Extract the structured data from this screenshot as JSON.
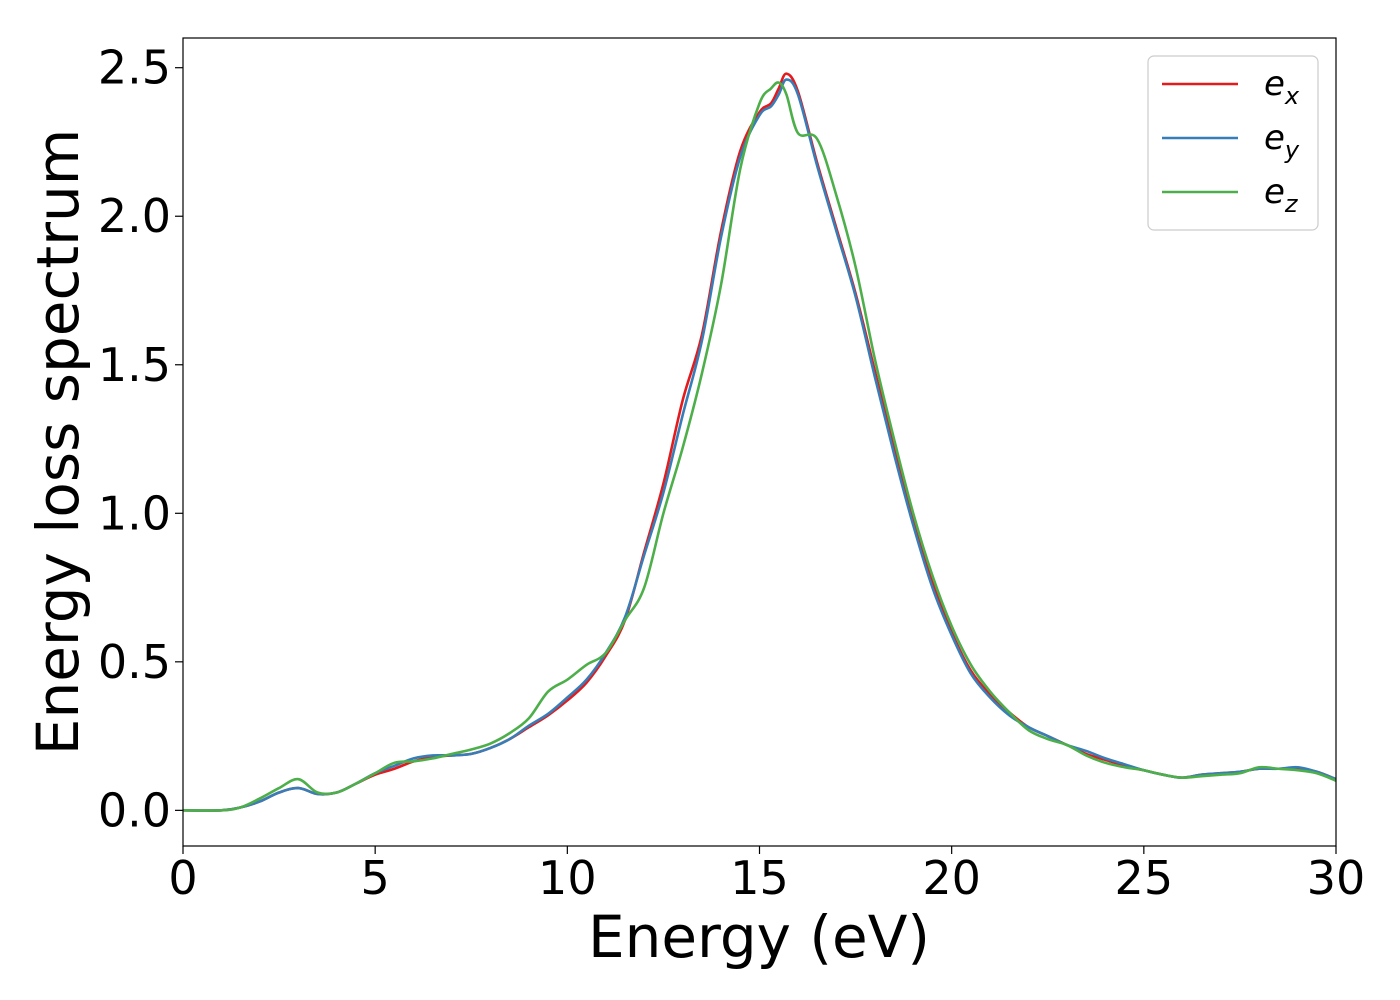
{
  "chart_data": {
    "type": "line",
    "title": "",
    "xlabel": "Energy (eV)",
    "ylabel": "Energy loss spectrum",
    "xlim": [
      0,
      30
    ],
    "ylim": [
      -0.12,
      2.6
    ],
    "xticks": [
      0,
      5,
      10,
      15,
      20,
      25,
      30
    ],
    "xtick_labels": [
      "0",
      "5",
      "10",
      "15",
      "20",
      "25",
      "30"
    ],
    "yticks": [
      0.0,
      0.5,
      1.0,
      1.5,
      2.0,
      2.5
    ],
    "ytick_labels": [
      "0.0",
      "0.5",
      "1.0",
      "1.5",
      "2.0",
      "2.5"
    ],
    "grid": false,
    "legend_position": "top-right",
    "series": [
      {
        "name": "e",
        "subscript": "x",
        "color": "#e41a1c",
        "x": [
          0,
          1,
          1.5,
          2,
          2.5,
          3,
          3.5,
          4,
          4.5,
          5,
          5.5,
          6,
          6.5,
          7,
          7.5,
          8,
          8.5,
          9,
          9.5,
          10,
          10.5,
          11,
          11.5,
          12,
          12.5,
          13,
          13.5,
          14,
          14.5,
          15,
          15.3,
          15.5,
          15.7,
          16,
          16.5,
          17,
          17.5,
          18,
          18.5,
          19,
          19.5,
          20,
          20.5,
          21,
          21.5,
          22,
          22.5,
          23,
          23.5,
          24,
          24.5,
          25,
          25.5,
          26,
          26.5,
          27,
          27.5,
          28,
          28.5,
          29,
          29.5,
          30
        ],
        "y": [
          0.0,
          0.0,
          0.01,
          0.03,
          0.06,
          0.075,
          0.055,
          0.06,
          0.09,
          0.12,
          0.14,
          0.165,
          0.18,
          0.185,
          0.19,
          0.21,
          0.24,
          0.28,
          0.32,
          0.37,
          0.43,
          0.52,
          0.64,
          0.87,
          1.1,
          1.38,
          1.6,
          1.95,
          2.22,
          2.35,
          2.38,
          2.43,
          2.48,
          2.42,
          2.18,
          1.96,
          1.74,
          1.48,
          1.22,
          0.98,
          0.77,
          0.6,
          0.47,
          0.39,
          0.33,
          0.28,
          0.25,
          0.22,
          0.19,
          0.17,
          0.15,
          0.135,
          0.12,
          0.11,
          0.12,
          0.125,
          0.13,
          0.14,
          0.14,
          0.14,
          0.13,
          0.105
        ]
      },
      {
        "name": "e",
        "subscript": "y",
        "color": "#377eb8",
        "x": [
          0,
          1,
          1.5,
          2,
          2.5,
          3,
          3.5,
          4,
          4.5,
          5,
          5.5,
          6,
          6.5,
          7,
          7.5,
          8,
          8.5,
          9,
          9.5,
          10,
          10.5,
          11,
          11.5,
          12,
          12.5,
          13,
          13.5,
          14,
          14.5,
          15,
          15.3,
          15.5,
          15.7,
          16,
          16.5,
          17,
          17.5,
          18,
          18.5,
          19,
          19.5,
          20,
          20.5,
          21,
          21.5,
          22,
          22.5,
          23,
          23.5,
          24,
          24.5,
          25,
          25.5,
          26,
          26.5,
          27,
          27.5,
          28,
          28.5,
          29,
          29.5,
          30
        ],
        "y": [
          0.0,
          0.0,
          0.01,
          0.03,
          0.06,
          0.075,
          0.055,
          0.06,
          0.09,
          0.125,
          0.15,
          0.175,
          0.185,
          0.185,
          0.19,
          0.21,
          0.24,
          0.285,
          0.325,
          0.38,
          0.44,
          0.53,
          0.65,
          0.86,
          1.07,
          1.33,
          1.58,
          1.93,
          2.2,
          2.34,
          2.37,
          2.41,
          2.46,
          2.41,
          2.17,
          1.95,
          1.73,
          1.46,
          1.2,
          0.96,
          0.75,
          0.59,
          0.46,
          0.38,
          0.32,
          0.28,
          0.25,
          0.22,
          0.2,
          0.175,
          0.155,
          0.135,
          0.12,
          0.11,
          0.12,
          0.125,
          0.13,
          0.14,
          0.14,
          0.145,
          0.13,
          0.105
        ]
      },
      {
        "name": "e",
        "subscript": "z",
        "color": "#4daf4a",
        "x": [
          0,
          1,
          1.5,
          2,
          2.5,
          3,
          3.5,
          4,
          4.5,
          5,
          5.5,
          6,
          6.5,
          7,
          7.5,
          8,
          8.5,
          9,
          9.5,
          10,
          10.5,
          11,
          11.5,
          12,
          12.5,
          13,
          13.5,
          14,
          14.5,
          15,
          15.3,
          15.5,
          15.7,
          16,
          16.5,
          17,
          17.5,
          18,
          18.5,
          19,
          19.5,
          20,
          20.5,
          21,
          21.5,
          22,
          22.5,
          23,
          23.5,
          24,
          24.5,
          25,
          25.5,
          26,
          26.5,
          27,
          27.5,
          28,
          28.5,
          29,
          29.5,
          30
        ],
        "y": [
          0.0,
          0.0,
          0.01,
          0.04,
          0.075,
          0.105,
          0.06,
          0.06,
          0.09,
          0.125,
          0.16,
          0.165,
          0.175,
          0.19,
          0.205,
          0.225,
          0.26,
          0.31,
          0.4,
          0.44,
          0.49,
          0.53,
          0.64,
          0.75,
          1.0,
          1.22,
          1.47,
          1.77,
          2.16,
          2.38,
          2.43,
          2.45,
          2.41,
          2.28,
          2.26,
          2.07,
          1.83,
          1.52,
          1.25,
          1.0,
          0.79,
          0.62,
          0.49,
          0.4,
          0.33,
          0.27,
          0.24,
          0.22,
          0.185,
          0.16,
          0.145,
          0.135,
          0.12,
          0.11,
          0.115,
          0.12,
          0.125,
          0.145,
          0.14,
          0.135,
          0.125,
          0.1
        ]
      }
    ]
  }
}
